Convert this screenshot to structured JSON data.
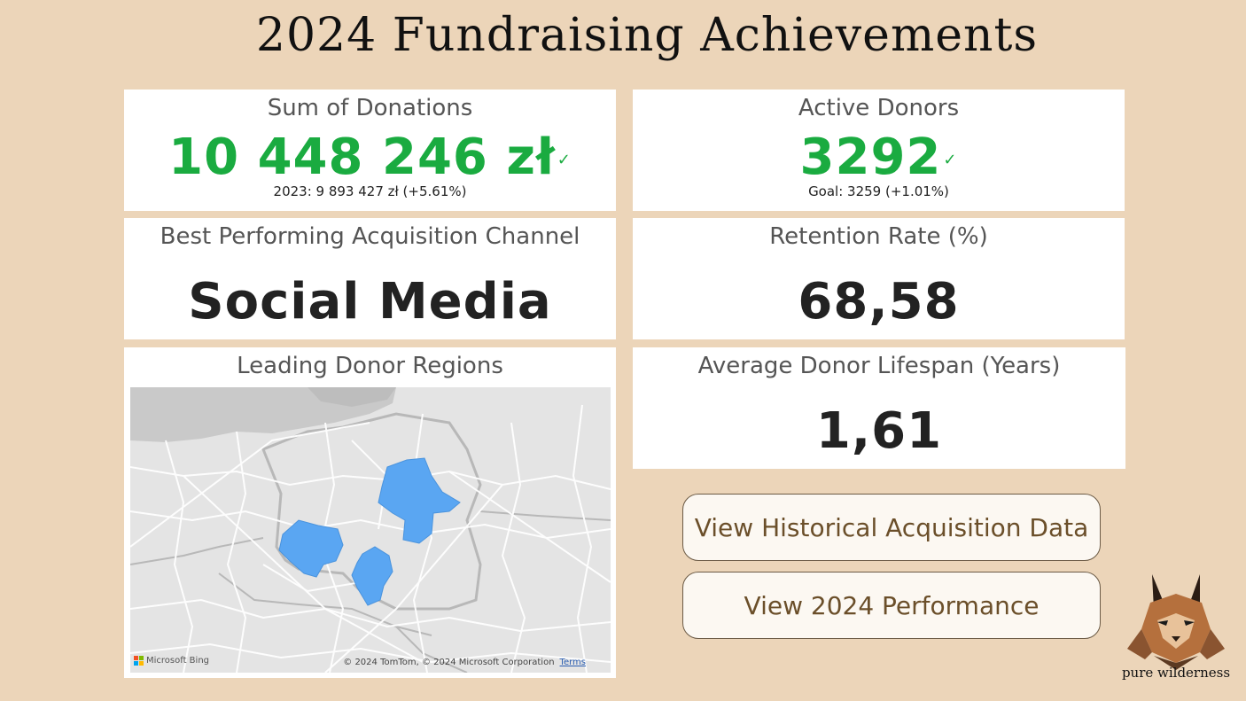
{
  "page": {
    "title": "2024 Fundraising Achievements"
  },
  "cards": {
    "donations": {
      "label": "Sum of Donations",
      "value": "10 448 246 zł",
      "sub": "2023: 9 893 427 zł (+5.61%)"
    },
    "donors": {
      "label": "Active Donors",
      "value": "3292",
      "sub": "Goal: 3259 (+1.01%)"
    },
    "channel": {
      "label": "Best Performing Acquisition Channel",
      "value": "Social Media"
    },
    "retention": {
      "label": "Retention Rate (%)",
      "value": "68,58"
    },
    "regions": {
      "label": "Leading Donor Regions"
    },
    "lifespan": {
      "label": "Average Donor Lifespan (Years)",
      "value": "1,61"
    }
  },
  "map": {
    "provider": "Microsoft Bing",
    "copyright": "© 2024 TomTom, © 2024 Microsoft Corporation",
    "terms": "Terms",
    "highlight_color": "#5aa6f2"
  },
  "buttons": {
    "historical": "View Historical Acquisition Data",
    "performance": "View 2024 Performance"
  },
  "logo": {
    "text": "pure wilderness"
  },
  "colors": {
    "background": "#ecd5b9",
    "kpi_green": "#1aab40",
    "button_text": "#6b4f2a"
  }
}
